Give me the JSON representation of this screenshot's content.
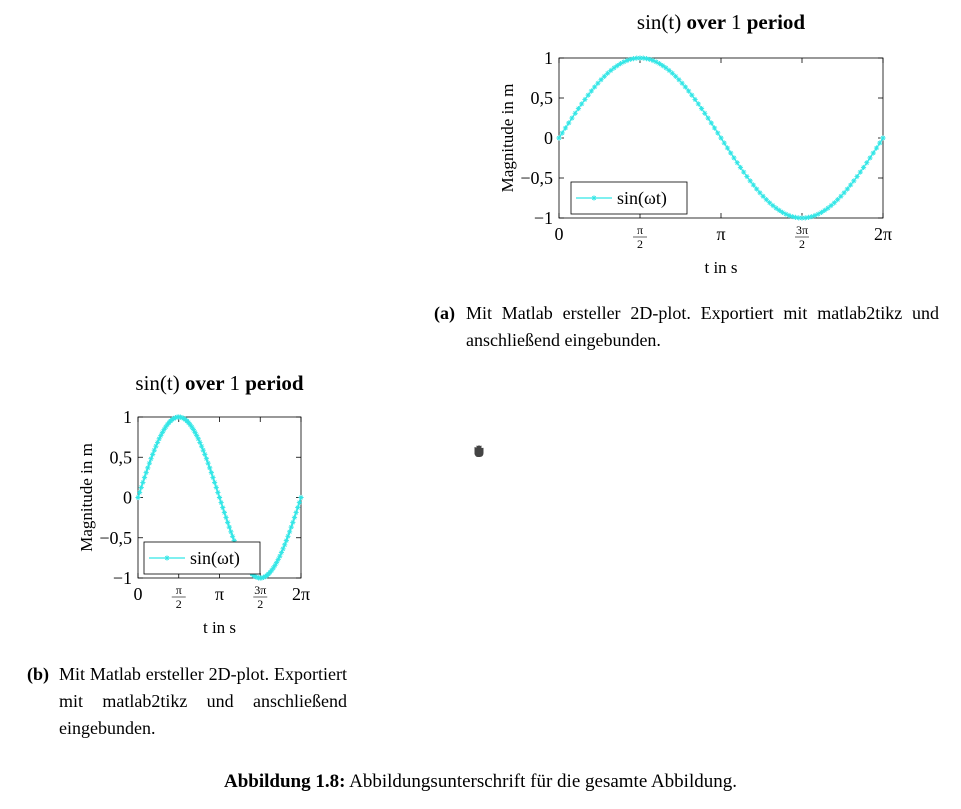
{
  "chart_data": [
    {
      "type": "line",
      "subfigure": "a",
      "title_parts": [
        {
          "text": "sin(t)",
          "style": "math"
        },
        {
          "text": " over ",
          "style": "bold"
        },
        {
          "text": "1",
          "style": "math"
        },
        {
          "text": " period",
          "style": "bold"
        }
      ],
      "xlabel": "t in s",
      "ylabel": "Magnitude in m",
      "xlim": [
        0,
        6.2832
      ],
      "ylim": [
        -1,
        1
      ],
      "x_ticks": [
        {
          "value": 0,
          "label": "0"
        },
        {
          "value": 1.5708,
          "label": "π/2",
          "num": "π",
          "den": "2"
        },
        {
          "value": 3.1416,
          "label": "π"
        },
        {
          "value": 4.7124,
          "label": "3π/2",
          "num": "3π",
          "den": "2"
        },
        {
          "value": 6.2832,
          "label": "2π"
        }
      ],
      "y_ticks": [
        {
          "value": 1,
          "label": "1"
        },
        {
          "value": 0.5,
          "label": "0,5"
        },
        {
          "value": 0,
          "label": "0"
        },
        {
          "value": -0.5,
          "label": "−0,5"
        },
        {
          "value": -1,
          "label": "−1"
        }
      ],
      "series": [
        {
          "name": "sin(ωt)",
          "function": "sin",
          "x_start": 0,
          "x_end": 6.2832,
          "samples": 101,
          "color": "#33e6e6",
          "marker": "asterisk"
        }
      ],
      "legend": {
        "position": "bottom-left"
      },
      "grid": false,
      "caption": {
        "label": "(a)",
        "text": "Mit Matlab ersteller 2D-plot. Exportiert mit matlab2tikz und anschließend eingebunden."
      }
    },
    {
      "type": "line",
      "subfigure": "b",
      "title_parts": [
        {
          "text": "sin(t)",
          "style": "math"
        },
        {
          "text": " over ",
          "style": "bold"
        },
        {
          "text": "1",
          "style": "math"
        },
        {
          "text": " period",
          "style": "bold"
        }
      ],
      "xlabel": "t in s",
      "ylabel": "Magnitude in m",
      "xlim": [
        0,
        6.2832
      ],
      "ylim": [
        -1,
        1
      ],
      "x_ticks": [
        {
          "value": 0,
          "label": "0"
        },
        {
          "value": 1.5708,
          "label": "π/2",
          "num": "π",
          "den": "2"
        },
        {
          "value": 3.1416,
          "label": "π"
        },
        {
          "value": 4.7124,
          "label": "3π/2",
          "num": "3π",
          "den": "2"
        },
        {
          "value": 6.2832,
          "label": "2π"
        }
      ],
      "y_ticks": [
        {
          "value": 1,
          "label": "1"
        },
        {
          "value": 0.5,
          "label": "0,5"
        },
        {
          "value": 0,
          "label": "0"
        },
        {
          "value": -0.5,
          "label": "−0,5"
        },
        {
          "value": -1,
          "label": "−1"
        }
      ],
      "series": [
        {
          "name": "sin(ωt)",
          "function": "sin",
          "x_start": 0,
          "x_end": 6.2832,
          "samples": 101,
          "color": "#33e6e6",
          "marker": "asterisk"
        }
      ],
      "legend": {
        "position": "bottom-left"
      },
      "grid": false,
      "caption": {
        "label": "(b)",
        "text": "Mit Matlab ersteller 2D-plot. Exportiert mit matlab2tikz und anschließend eingebunden."
      }
    }
  ],
  "figure_caption": {
    "label": "Abbildung 1.8:",
    "text": "Abbildungsunterschrift für die gesamte Abbildung."
  },
  "cursor": {
    "icon": "grab-hand-icon"
  }
}
